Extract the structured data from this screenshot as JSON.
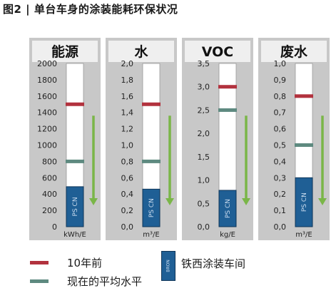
{
  "figure_title": "图2 | 单台车身的涂装能耗环保状况",
  "colors": {
    "panel_bg": "#c8c8c8",
    "header_bg": "#efefef",
    "tube_fill": "#1f5f95",
    "tube_text": "#c9dbee",
    "ten_years_ago": "#b2323e",
    "current_average": "#5e8a80",
    "trend_arrow": "#7ab648"
  },
  "legend": {
    "ten_years_ago": "10年前",
    "current_average": "现在的平均水平",
    "current_plant": "铁西涂装车间",
    "current_plant_tube_text": "BRON"
  },
  "chart_data": [
    {
      "type": "bar",
      "title": "能源",
      "unit": "kWh/E",
      "ylim": [
        0,
        2000
      ],
      "ticks": [
        "0",
        "200",
        "400",
        "600",
        "800",
        "1000",
        "1200",
        "1400",
        "1600",
        "1800",
        "2000"
      ],
      "ten_years_ago": 1500,
      "current_average": 800,
      "current_plant": {
        "label": "PS CN",
        "value": 490
      },
      "trend": "down"
    },
    {
      "type": "bar",
      "title": "水",
      "unit": "m³/E",
      "ylim": [
        0,
        2.0
      ],
      "ticks": [
        "0,0",
        "0,2",
        "0,4",
        "0,6",
        "0,8",
        "1,0",
        "1,2",
        "1,4",
        "1,6",
        "1,8",
        "2,0"
      ],
      "ten_years_ago": 1.5,
      "current_average": 0.8,
      "current_plant": {
        "label": "PS CN",
        "value": 0.46
      },
      "trend": "down"
    },
    {
      "type": "bar",
      "title": "VOC",
      "unit": "kg/E",
      "ylim": [
        0,
        3.5
      ],
      "ticks": [
        "0,0",
        "0,5",
        "1,0",
        "1,5",
        "2,0",
        "2,5",
        "3,0",
        "3,5"
      ],
      "ten_years_ago": 3.0,
      "current_average": 2.5,
      "current_plant": {
        "label": "PS CN",
        "value": 0.78
      },
      "trend": "down"
    },
    {
      "type": "bar",
      "title": "废水",
      "unit": "m³/E",
      "ylim": [
        0,
        1.0
      ],
      "ticks": [
        "0,0",
        "0,1",
        "0,2",
        "0,3",
        "0,4",
        "0,5",
        "0,6",
        "0,7",
        "0,8",
        "0,9",
        "1,0"
      ],
      "ten_years_ago": 0.8,
      "current_average": 0.5,
      "current_plant": {
        "label": "PS CN",
        "value": 0.3
      },
      "trend": "down"
    }
  ]
}
